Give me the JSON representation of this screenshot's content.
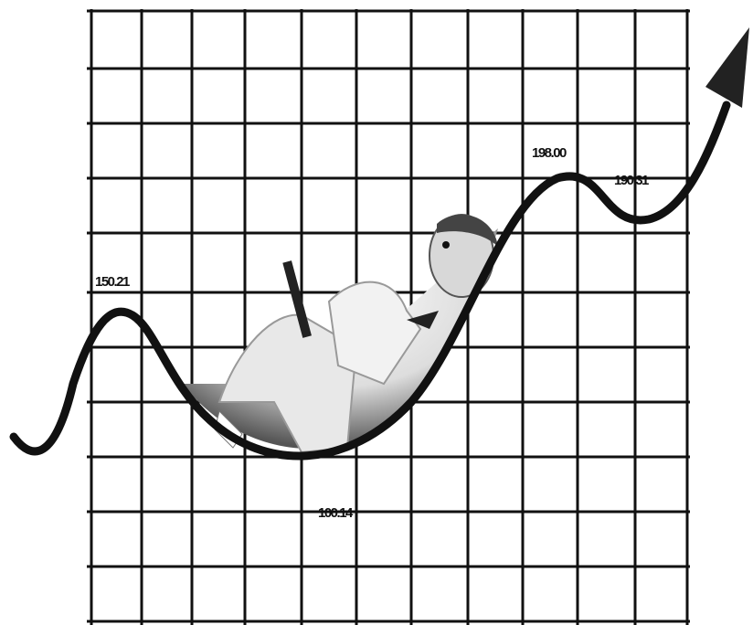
{
  "labels": [
    "150.21",
    "100.14",
    "198.00",
    "190.31"
  ]
}
